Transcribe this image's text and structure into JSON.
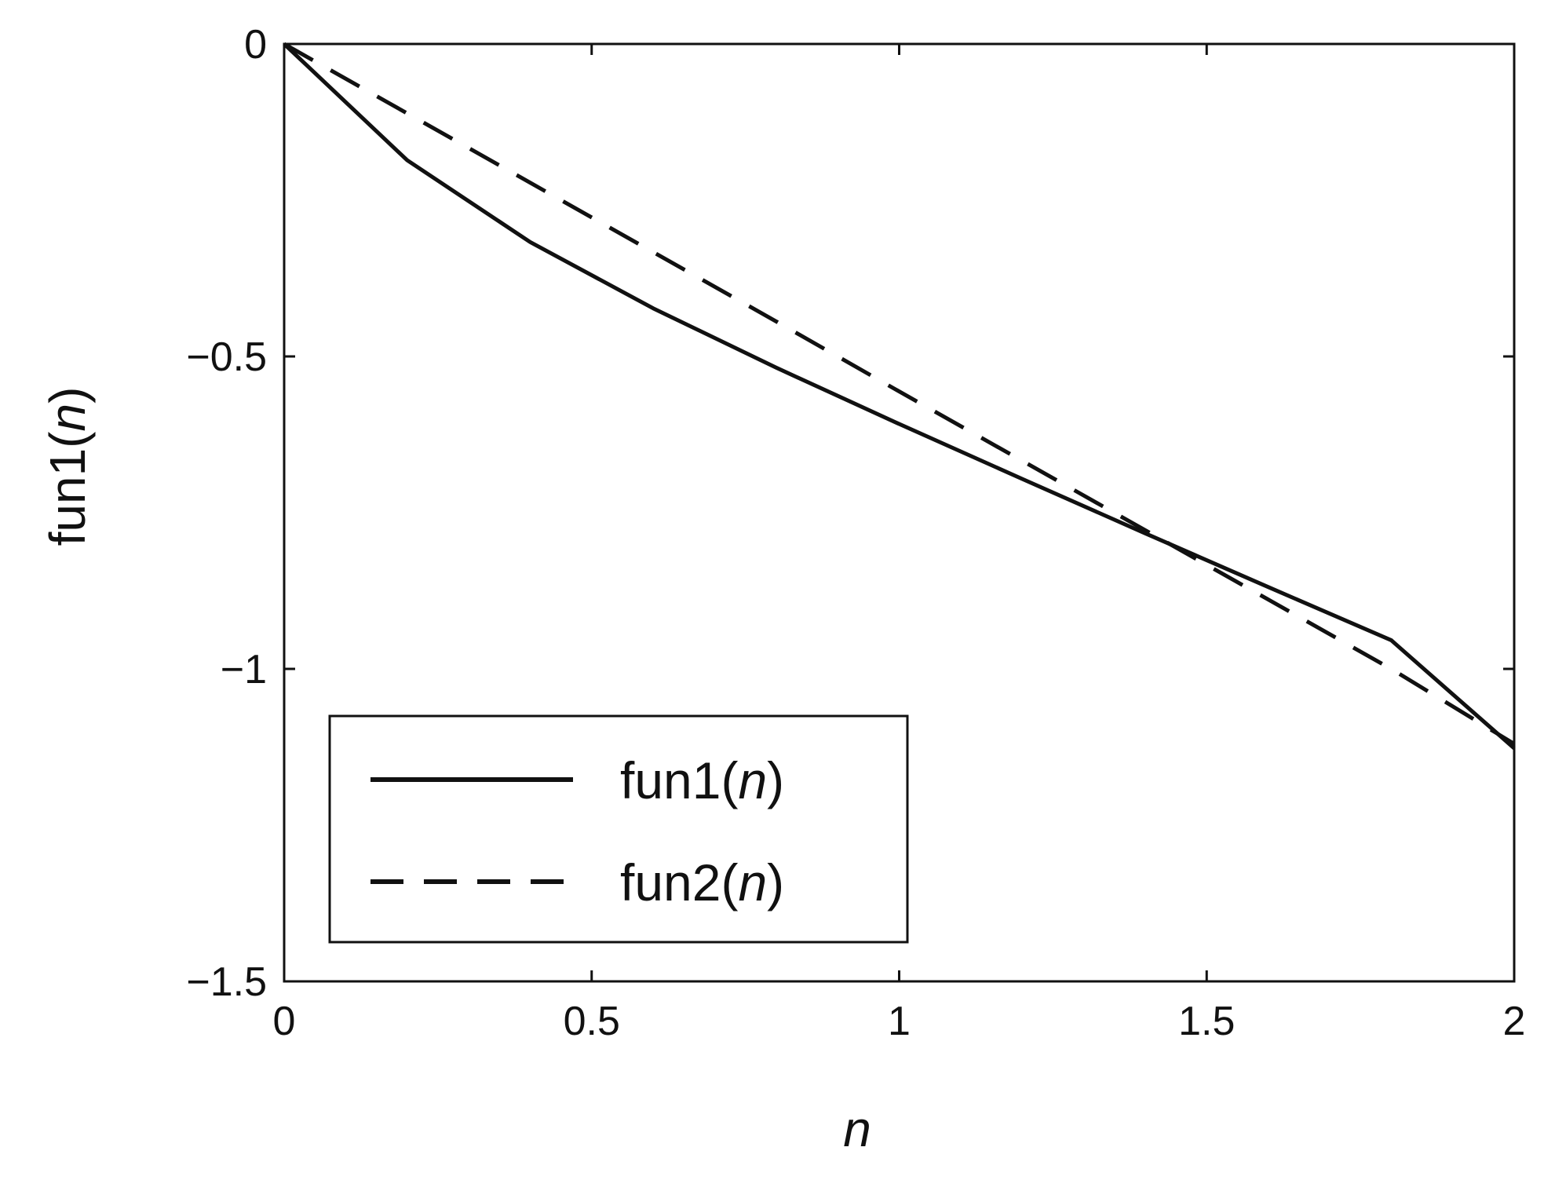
{
  "chart_data": {
    "type": "line",
    "title": "",
    "xlabel": {
      "prefix": "",
      "italic": "n",
      "suffix": ""
    },
    "ylabel": {
      "prefix": "fun1(",
      "italic": "n",
      "suffix": ")"
    },
    "xlim": [
      0,
      2
    ],
    "ylim": [
      -1.5,
      0
    ],
    "xticks": [
      0,
      0.5,
      1,
      1.5,
      2
    ],
    "xtick_labels": [
      "0",
      "0.5",
      "1",
      "1.5",
      "2"
    ],
    "yticks": [
      0,
      -0.5,
      -1,
      -1.5
    ],
    "ytick_labels": [
      "0",
      "−0.5",
      "−1",
      "−1.5"
    ],
    "grid": false,
    "legend_position": "bottom-left",
    "series": [
      {
        "name": {
          "prefix": "fun1(",
          "italic": "n",
          "suffix": ")"
        },
        "style": "solid",
        "color": "#111111",
        "x": [
          0,
          0.2,
          0.4,
          0.6,
          0.8,
          1.0,
          1.2,
          1.4,
          1.6,
          1.8,
          2.0
        ],
        "y": [
          0,
          -0.186,
          -0.317,
          -0.423,
          -0.518,
          -0.608,
          -0.696,
          -0.783,
          -0.869,
          -0.954,
          -1.127
        ]
      },
      {
        "name": {
          "prefix": "fun2(",
          "italic": "n",
          "suffix": ")"
        },
        "style": "dashed",
        "color": "#111111",
        "x": [
          0,
          0.2,
          0.4,
          0.6,
          0.8,
          1.0,
          1.2,
          1.4,
          1.6,
          1.8,
          2.0
        ],
        "y": [
          0,
          -0.111,
          -0.222,
          -0.333,
          -0.444,
          -0.556,
          -0.667,
          -0.778,
          -0.889,
          -1.0,
          -1.12
        ]
      }
    ]
  }
}
